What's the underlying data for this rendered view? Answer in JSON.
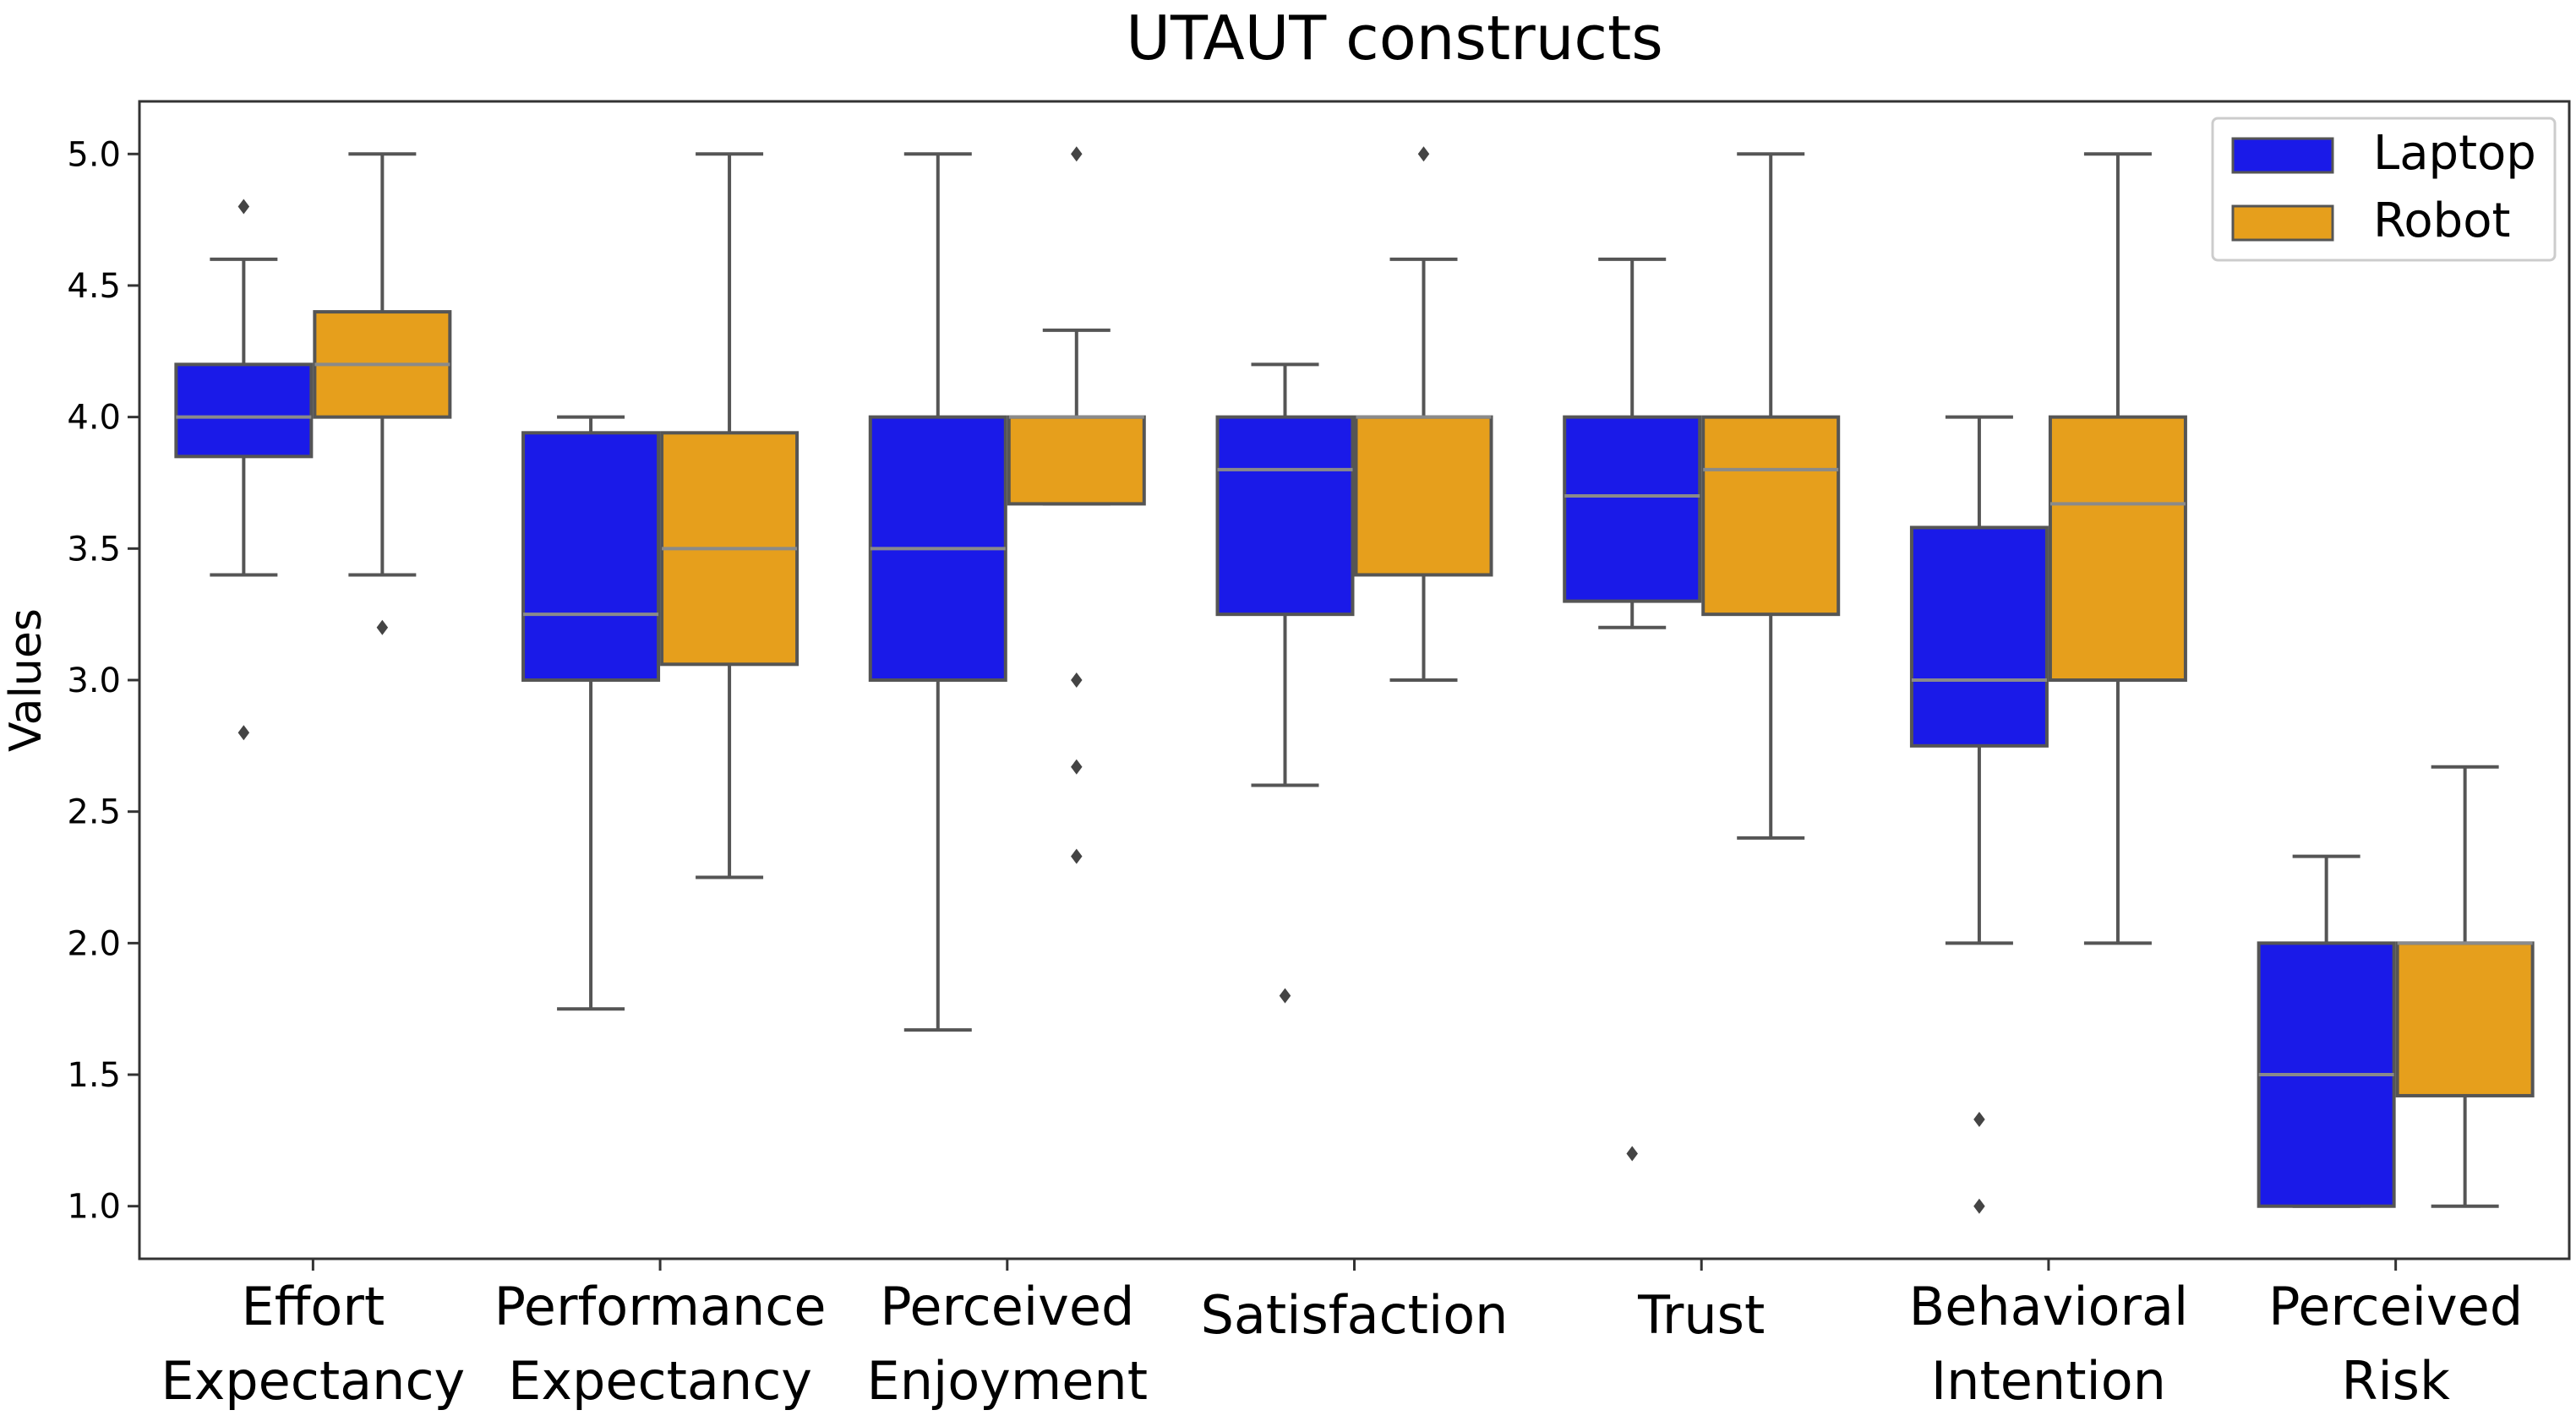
{
  "chart_data": {
    "type": "box",
    "title": "UTAUT constructs",
    "xlabel": "",
    "ylabel": "Values",
    "ylim": [
      0.8,
      5.2
    ],
    "yticks": [
      "1.0",
      "1.5",
      "2.0",
      "2.5",
      "3.0",
      "3.5",
      "4.0",
      "4.5",
      "5.0"
    ],
    "grid": false,
    "legend_position": "top-right",
    "categories": [
      [
        "Effort",
        "Expectancy"
      ],
      [
        "Performance",
        "Expectancy"
      ],
      [
        "Perceived",
        "Enjoyment"
      ],
      [
        "Satisfaction"
      ],
      [
        "Trust"
      ],
      [
        "Behavioral",
        "Intention"
      ],
      [
        "Perceived",
        "Risk"
      ]
    ],
    "series": [
      {
        "name": "Laptop",
        "color": "#1a1ae8",
        "boxes": [
          {
            "whislo": 3.4,
            "q1": 3.85,
            "med": 4.0,
            "q3": 4.2,
            "whishi": 4.6,
            "fliers": [
              4.8,
              2.8
            ]
          },
          {
            "whislo": 1.75,
            "q1": 3.0,
            "med": 3.25,
            "q3": 3.94,
            "whishi": 4.0,
            "fliers": []
          },
          {
            "whislo": 1.67,
            "q1": 3.0,
            "med": 3.5,
            "q3": 4.0,
            "whishi": 5.0,
            "fliers": []
          },
          {
            "whislo": 2.6,
            "q1": 3.25,
            "med": 3.8,
            "q3": 4.0,
            "whishi": 4.2,
            "fliers": [
              1.8
            ]
          },
          {
            "whislo": 3.2,
            "q1": 3.3,
            "med": 3.7,
            "q3": 4.0,
            "whishi": 4.6,
            "fliers": [
              1.2
            ]
          },
          {
            "whislo": 2.0,
            "q1": 2.75,
            "med": 3.0,
            "q3": 3.58,
            "whishi": 4.0,
            "fliers": [
              1.33,
              1.0
            ]
          },
          {
            "whislo": 1.0,
            "q1": 1.0,
            "med": 1.5,
            "q3": 2.0,
            "whishi": 2.33,
            "fliers": []
          }
        ]
      },
      {
        "name": "Robot",
        "color": "#e69f1c",
        "boxes": [
          {
            "whislo": 3.4,
            "q1": 4.0,
            "med": 4.2,
            "q3": 4.4,
            "whishi": 5.0,
            "fliers": [
              3.2
            ]
          },
          {
            "whislo": 2.25,
            "q1": 3.06,
            "med": 3.5,
            "q3": 3.94,
            "whishi": 5.0,
            "fliers": []
          },
          {
            "whislo": 3.67,
            "q1": 3.67,
            "med": 4.0,
            "q3": 4.0,
            "whishi": 4.33,
            "fliers": [
              5.0,
              3.0,
              2.67,
              2.33
            ]
          },
          {
            "whislo": 3.0,
            "q1": 3.4,
            "med": 4.0,
            "q3": 4.0,
            "whishi": 4.6,
            "fliers": [
              5.0
            ]
          },
          {
            "whislo": 2.4,
            "q1": 3.25,
            "med": 3.8,
            "q3": 4.0,
            "whishi": 5.0,
            "fliers": []
          },
          {
            "whislo": 2.0,
            "q1": 3.0,
            "med": 3.67,
            "q3": 4.0,
            "whishi": 5.0,
            "fliers": []
          },
          {
            "whislo": 1.0,
            "q1": 1.42,
            "med": 2.0,
            "q3": 2.0,
            "whishi": 2.67,
            "fliers": []
          }
        ]
      }
    ]
  }
}
